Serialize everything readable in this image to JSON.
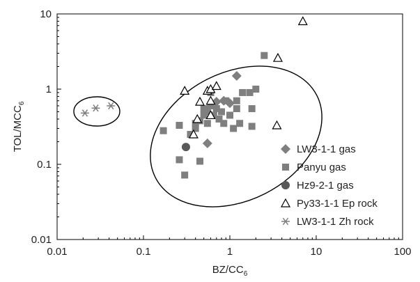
{
  "chart_data": {
    "type": "scatter",
    "xscale": "log",
    "yscale": "log",
    "xlim": [
      0.01,
      100
    ],
    "ylim": [
      0.01,
      10
    ],
    "xticks": [
      "0.01",
      "0.1",
      "1",
      "10",
      "100"
    ],
    "yticks": [
      "0.01",
      "0.1",
      "1",
      "10"
    ],
    "xlabel_main": "BZ/CC",
    "xlabel_sub": "6",
    "ylabel_main": "TOL/MCC",
    "ylabel_sub": "6",
    "legend_position": "right-bottom inside plot",
    "grid": false,
    "series": [
      {
        "name": "LW3-1-1 gas",
        "marker": "diamond",
        "color": "#7f7f7f",
        "points": [
          [
            1.2,
            1.5
          ],
          [
            0.55,
            0.19
          ],
          [
            0.7,
            0.68
          ],
          [
            0.85,
            0.7
          ],
          [
            1.0,
            0.65
          ]
        ]
      },
      {
        "name": "Panyu gas",
        "marker": "square",
        "color": "#7f7f7f",
        "points": [
          [
            0.17,
            0.28
          ],
          [
            0.26,
            0.33
          ],
          [
            0.26,
            0.115
          ],
          [
            0.3,
            0.072
          ],
          [
            0.35,
            0.25
          ],
          [
            0.4,
            0.3
          ],
          [
            0.45,
            0.11
          ],
          [
            0.4,
            0.35
          ],
          [
            0.45,
            0.38
          ],
          [
            0.5,
            0.45
          ],
          [
            0.5,
            0.55
          ],
          [
            0.55,
            0.35
          ],
          [
            0.55,
            0.5
          ],
          [
            0.6,
            0.6
          ],
          [
            0.6,
            0.9
          ],
          [
            0.65,
            0.45
          ],
          [
            0.7,
            0.55
          ],
          [
            0.75,
            0.4
          ],
          [
            0.8,
            0.5
          ],
          [
            0.85,
            0.35
          ],
          [
            0.9,
            0.7
          ],
          [
            1.0,
            0.45
          ],
          [
            1.1,
            0.3
          ],
          [
            1.2,
            0.55
          ],
          [
            1.3,
            0.35
          ],
          [
            1.2,
            0.7
          ],
          [
            1.4,
            0.9
          ],
          [
            1.7,
            0.9
          ],
          [
            1.8,
            0.55
          ],
          [
            1.8,
            0.32
          ],
          [
            2.0,
            1.0
          ],
          [
            2.5,
            2.8
          ]
        ]
      },
      {
        "name": "Hz9-2-1 gas",
        "marker": "circle",
        "color": "#595959",
        "points": [
          [
            0.31,
            0.17
          ]
        ]
      },
      {
        "name": "Py33-1-1 Ep rock",
        "marker": "triangle-open",
        "color": "#000000",
        "points": [
          [
            0.3,
            0.95
          ],
          [
            0.38,
            0.25
          ],
          [
            0.42,
            0.4
          ],
          [
            0.45,
            0.68
          ],
          [
            0.55,
            0.95
          ],
          [
            0.6,
            0.7
          ],
          [
            0.6,
            0.45
          ],
          [
            0.6,
            1.0
          ],
          [
            0.7,
            1.1
          ],
          [
            3.5,
            0.33
          ],
          [
            3.6,
            2.6
          ],
          [
            7.0,
            8.0
          ]
        ]
      },
      {
        "name": "LW3-1-1 Zh rock",
        "marker": "asterisk",
        "color": "#7f7f7f",
        "points": [
          [
            0.021,
            0.48
          ],
          [
            0.028,
            0.56
          ],
          [
            0.042,
            0.6
          ]
        ]
      }
    ]
  }
}
